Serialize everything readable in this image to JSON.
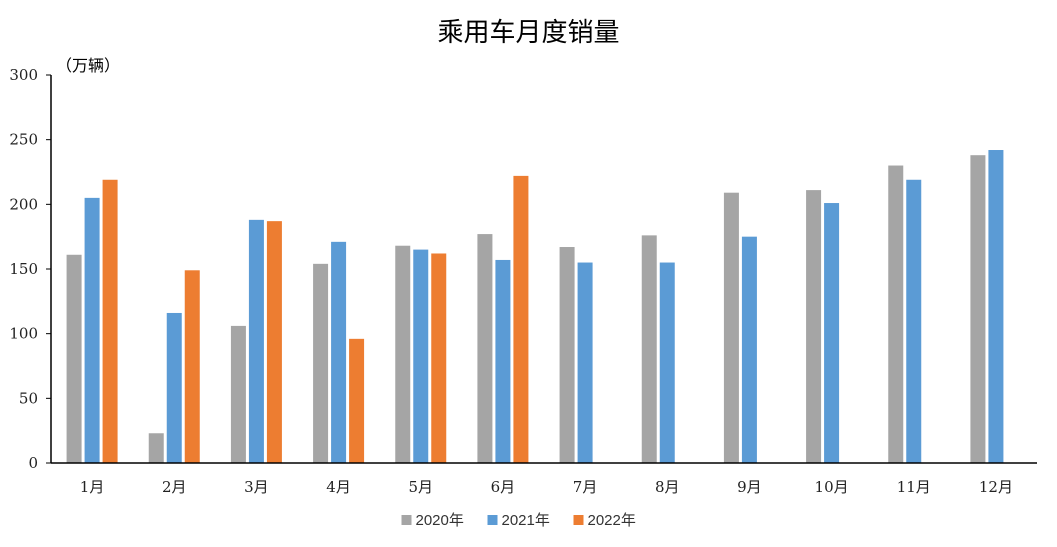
{
  "chart_data": {
    "type": "bar",
    "title": "乘用车月度销量",
    "ylabel": "（万辆）",
    "xlabel": "",
    "ylim": [
      0,
      300
    ],
    "yticks": [
      0,
      50,
      100,
      150,
      200,
      250,
      300
    ],
    "categories": [
      "1月",
      "2月",
      "3月",
      "4月",
      "5月",
      "6月",
      "7月",
      "8月",
      "9月",
      "10月",
      "11月",
      "12月"
    ],
    "series": [
      {
        "name": "2020年",
        "color": "#a5a5a5",
        "values": [
          161,
          23,
          106,
          154,
          168,
          177,
          167,
          176,
          209,
          211,
          230,
          238
        ]
      },
      {
        "name": "2021年",
        "color": "#5b9bd5",
        "values": [
          205,
          116,
          188,
          171,
          165,
          157,
          155,
          155,
          175,
          201,
          219,
          242
        ]
      },
      {
        "name": "2022年",
        "color": "#ed7d31",
        "values": [
          219,
          149,
          187,
          96,
          162,
          222,
          null,
          null,
          null,
          null,
          null,
          null
        ]
      }
    ],
    "legend_position": "bottom",
    "grid": false
  }
}
